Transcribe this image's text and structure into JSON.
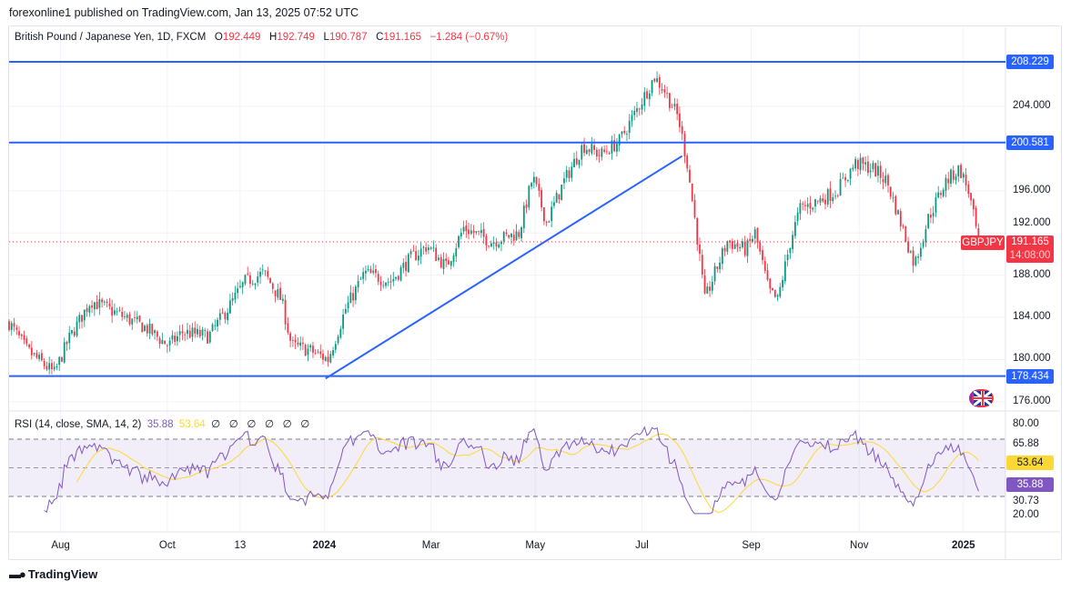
{
  "header": {
    "published": "forexonline1 published on TradingView.com, Jan 13, 2025 07:52 UTC"
  },
  "legend": {
    "symbol": "British Pound / Japanese Yen, 1D, FXCM",
    "o_label": "O",
    "o": "192.449",
    "h_label": "H",
    "h": "192.749",
    "l_label": "L",
    "l": "190.787",
    "c_label": "C",
    "c": "191.165",
    "change": "−1.284 (−0.67%)"
  },
  "rsi_legend": {
    "label": "RSI (14, close, SMA, 14, 2)",
    "rsi": "35.88",
    "sma": "53.64",
    "empty": [
      "∅",
      "∅",
      "∅",
      "∅",
      "∅",
      "∅"
    ]
  },
  "price_axis": [
    "204.000",
    "196.000",
    "192.000",
    "188.000",
    "184.000",
    "180.000",
    "176.000"
  ],
  "price_axis_values": [
    204,
    196,
    192,
    188,
    184,
    180,
    176
  ],
  "levels": [
    {
      "label": "208.229",
      "price": 208.229
    },
    {
      "label": "200.581",
      "price": 200.581
    },
    {
      "label": "178.434",
      "price": 178.434
    }
  ],
  "current": {
    "symbol": "GBPJPY",
    "price_label": "191.165",
    "price": 191.165,
    "countdown": "14:08:00"
  },
  "rsi_axis": [
    "80.00",
    "65.88",
    "30.73",
    "20.00"
  ],
  "rsi_axis_values": [
    80,
    65.88,
    30.73,
    20
  ],
  "rsi_tags": {
    "sma": "53.64",
    "rsi": "35.88"
  },
  "time_axis": [
    {
      "label": "Aug",
      "week": 4.1
    },
    {
      "label": "Oct",
      "week": 12.6
    },
    {
      "label": "13",
      "week": 18.4
    },
    {
      "label": "2024",
      "week": 25.1,
      "bold": true
    },
    {
      "label": "Mar",
      "week": 33.6
    },
    {
      "label": "May",
      "week": 41.9
    },
    {
      "label": "Jul",
      "week": 50.4
    },
    {
      "label": "Sep",
      "week": 59.1
    },
    {
      "label": "Nov",
      "week": 67.7
    },
    {
      "label": "2025",
      "week": 76.0,
      "bold": true
    }
  ],
  "colors": {
    "up": "#089981",
    "down": "#f23645",
    "level": "#2962ff",
    "rsi": "#7e57c2",
    "sma": "#fdd835",
    "band": "#7e57c2"
  },
  "footer": {
    "brand": "TradingView"
  },
  "chart_data": {
    "type": "candlestick",
    "title": "British Pound / Japanese Yen, 1D, FXCM",
    "ylim": [
      175,
      210
    ],
    "rsi_ylim": [
      20,
      80
    ],
    "rsi_bands": [
      30,
      70
    ],
    "path_week_price": [
      [
        0,
        183.5
      ],
      [
        1.4,
        180.9
      ],
      [
        3.6,
        178.7
      ],
      [
        4.7,
        181.8
      ],
      [
        6.5,
        185.6
      ],
      [
        8.7,
        184.3
      ],
      [
        10.9,
        183.0
      ],
      [
        12.7,
        181.3
      ],
      [
        13.8,
        182.6
      ],
      [
        15.9,
        182.2
      ],
      [
        17.4,
        184.8
      ],
      [
        18.8,
        187.4
      ],
      [
        20.3,
        188.2
      ],
      [
        21.7,
        185.6
      ],
      [
        22.5,
        181.3
      ],
      [
        23.9,
        180.9
      ],
      [
        25.4,
        180.0
      ],
      [
        26.8,
        184.8
      ],
      [
        28.3,
        188.2
      ],
      [
        30.4,
        187.4
      ],
      [
        31.9,
        189.5
      ],
      [
        33.3,
        190.8
      ],
      [
        34.8,
        188.8
      ],
      [
        36.2,
        192.5
      ],
      [
        38.4,
        191.2
      ],
      [
        40.6,
        192.0
      ],
      [
        41.7,
        197.3
      ],
      [
        42.8,
        193.0
      ],
      [
        44.2,
        196.9
      ],
      [
        45.7,
        200.3
      ],
      [
        47.1,
        199.4
      ],
      [
        48.6,
        200.7
      ],
      [
        50,
        203.7
      ],
      [
        51.4,
        206.8
      ],
      [
        52.2,
        205.5
      ],
      [
        53.3,
        202.9
      ],
      [
        54,
        198.6
      ],
      [
        54.7,
        192.5
      ],
      [
        55.4,
        185.6
      ],
      [
        56.2,
        188.2
      ],
      [
        57.2,
        191.2
      ],
      [
        58.7,
        190.4
      ],
      [
        59.4,
        192.0
      ],
      [
        60.5,
        186.5
      ],
      [
        61.2,
        185.6
      ],
      [
        62.3,
        191.6
      ],
      [
        63,
        194.3
      ],
      [
        64.5,
        195.1
      ],
      [
        65.9,
        196.0
      ],
      [
        67.4,
        198.6
      ],
      [
        68.8,
        198.1
      ],
      [
        69.9,
        196.9
      ],
      [
        71,
        193.0
      ],
      [
        72.1,
        189.0
      ],
      [
        73.2,
        193.4
      ],
      [
        74.6,
        196.9
      ],
      [
        75.7,
        198.1
      ],
      [
        76.4,
        196.0
      ],
      [
        77.2,
        191.165
      ]
    ],
    "trendline": {
      "from": {
        "week": 25.2,
        "price": 178.2
      },
      "to": {
        "week": 53.6,
        "price": 199.3
      }
    }
  }
}
